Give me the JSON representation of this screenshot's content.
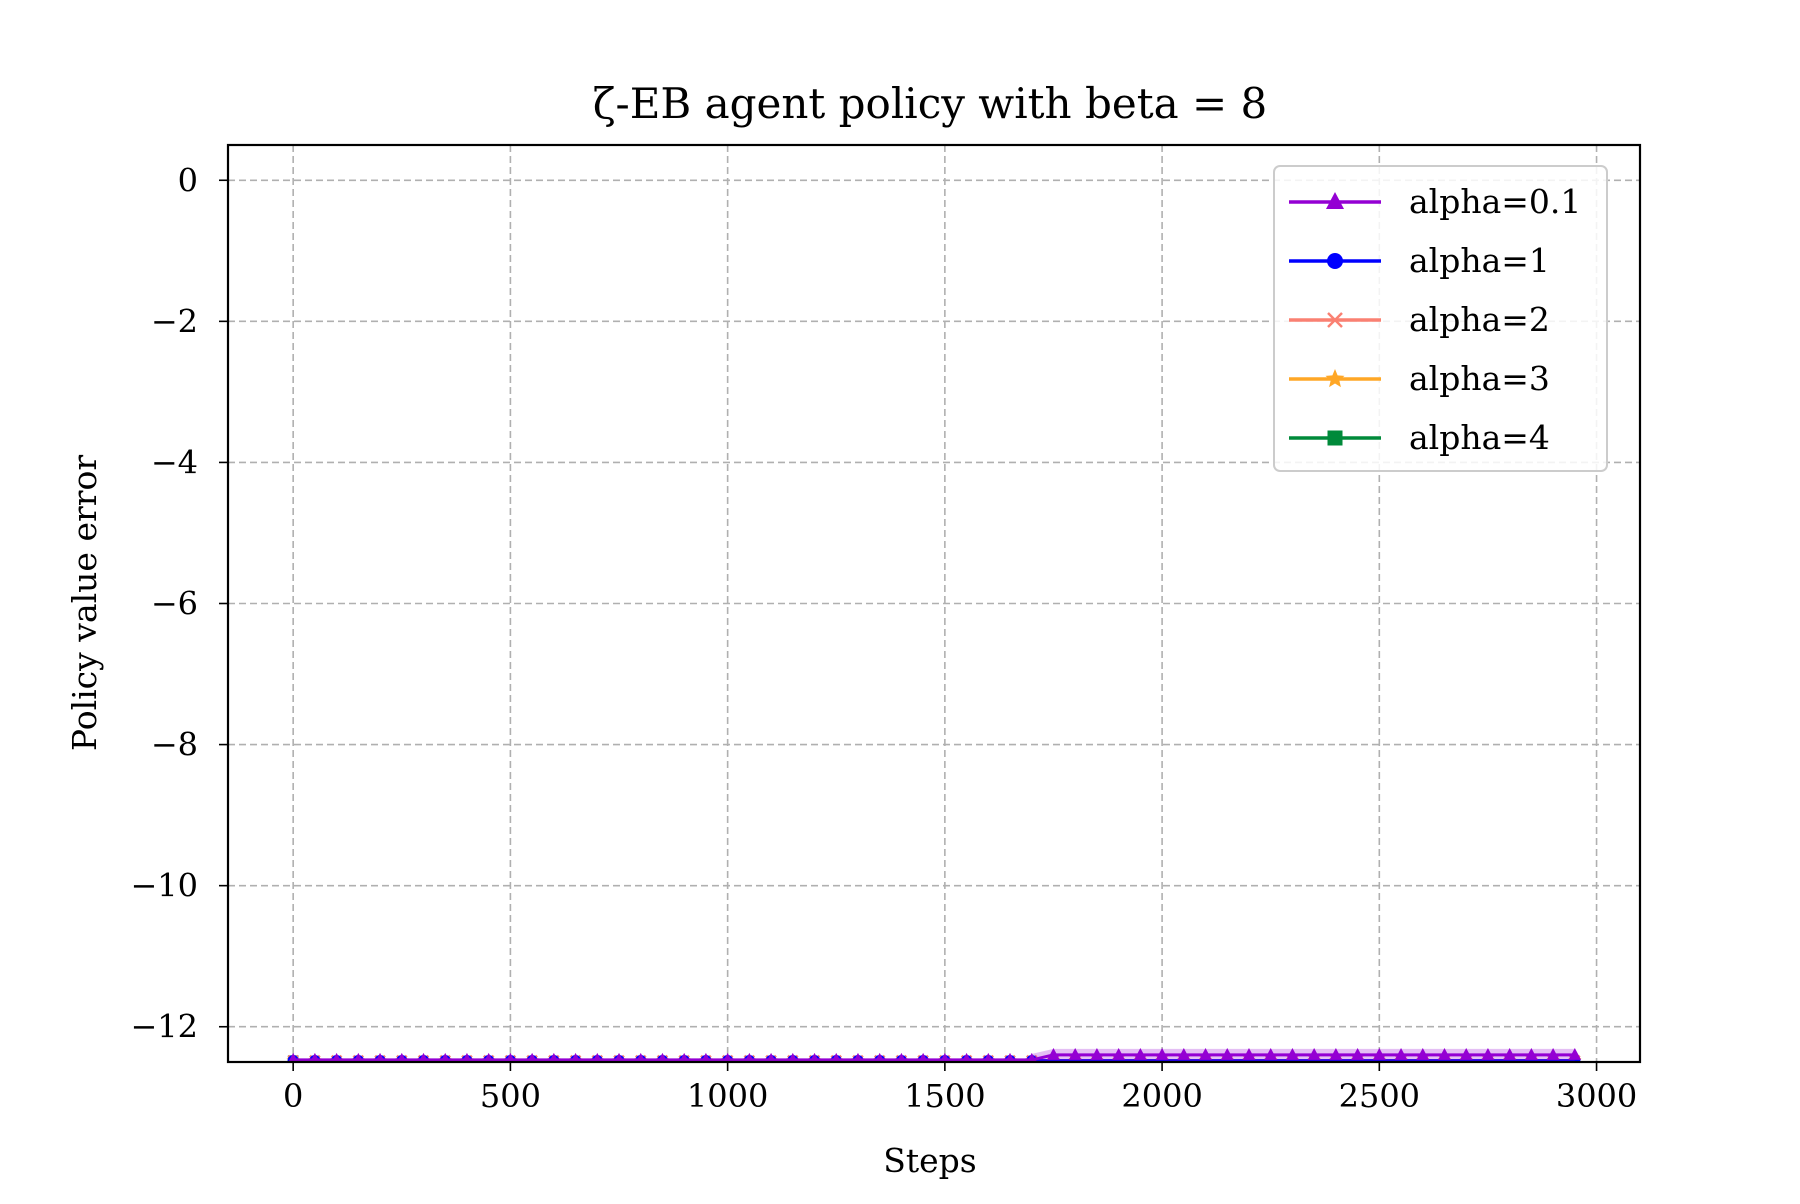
{
  "chart_data": {
    "type": "line",
    "title": "ζ-EB agent policy with beta = 8",
    "xlabel": "Steps",
    "ylabel": "Policy value error",
    "xlim": [
      -150,
      3100
    ],
    "ylim": [
      -12.5,
      0.5
    ],
    "xticks": [
      0,
      500,
      1000,
      1500,
      2000,
      2500,
      3000
    ],
    "xtick_labels": [
      "0",
      "500",
      "1000",
      "1500",
      "2000",
      "2500",
      "3000"
    ],
    "yticks": [
      0,
      -2,
      -4,
      -6,
      -8,
      -10,
      -12
    ],
    "ytick_labels": [
      "0",
      "−2",
      "−4",
      "−6",
      "−8",
      "−10",
      "−12"
    ],
    "grid": true,
    "legend_position": "top-right",
    "series": [
      {
        "name": "alpha=0.1",
        "color": "#9400d3",
        "marker": "triangle",
        "x_start": 0,
        "x_step": 50,
        "count": 60,
        "baseline": -12.47,
        "raised_from": 1750,
        "raised_value": -12.4,
        "band": true
      },
      {
        "name": "alpha=1",
        "color": "#0000ff",
        "marker": "circle",
        "x_start": 0,
        "x_step": 50,
        "count": 60,
        "baseline": -12.48,
        "raised_from": null,
        "raised_value": null,
        "band": false
      },
      {
        "name": "alpha=2",
        "color": "#fa8072",
        "marker": "x",
        "x_start": 0,
        "x_step": 50,
        "count": 60,
        "baseline": -12.48,
        "raised_from": null,
        "raised_value": null,
        "band": false
      },
      {
        "name": "alpha=3",
        "color": "#ffa726",
        "marker": "star",
        "x_start": 0,
        "x_step": 50,
        "count": 60,
        "baseline": -12.48,
        "raised_from": null,
        "raised_value": null,
        "band": false
      },
      {
        "name": "alpha=4",
        "color": "#008a3a",
        "marker": "square",
        "x_start": 0,
        "x_step": 50,
        "count": 1,
        "baseline": -12.48,
        "raised_from": null,
        "raised_value": null,
        "band": false
      }
    ]
  }
}
